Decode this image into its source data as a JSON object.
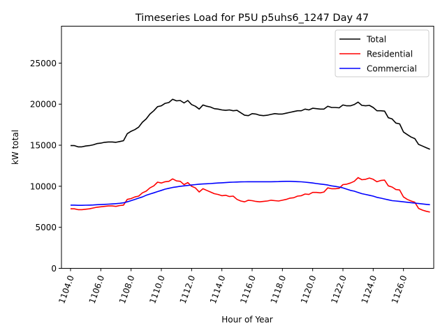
{
  "chart_data": {
    "type": "line",
    "title": "Timeseries Load for P5U p5uhs6_1247  Day 47",
    "xlabel": "Hour of Year",
    "ylabel": "kW total",
    "xlim": [
      1103.4,
      1128.0
    ],
    "ylim": [
      0,
      29500
    ],
    "xticks": [
      1104,
      1106,
      1108,
      1110,
      1112,
      1114,
      1116,
      1118,
      1120,
      1122,
      1124,
      1126
    ],
    "xtick_labels": [
      "1104.0",
      "1106.0",
      "1108.0",
      "1110.0",
      "1112.0",
      "1114.0",
      "1116.0",
      "1118.0",
      "1120.0",
      "1122.0",
      "1124.0",
      "1126.0"
    ],
    "yticks": [
      0,
      5000,
      10000,
      15000,
      20000,
      25000
    ],
    "ytick_labels": [
      "0",
      "5000",
      "10000",
      "15000",
      "20000",
      "25000"
    ],
    "grid": false,
    "legend_position": "top-right",
    "x_start": 1104,
    "x_step": 0.25,
    "series": [
      {
        "name": "Total",
        "color": "#000000",
        "values": [
          14950,
          14950,
          14800,
          14800,
          14900,
          14950,
          15050,
          15200,
          15250,
          15350,
          15400,
          15400,
          15350,
          15450,
          15550,
          16400,
          16700,
          16900,
          17200,
          17800,
          18200,
          18800,
          19200,
          19700,
          19800,
          20100,
          20200,
          20600,
          20400,
          20450,
          20150,
          20450,
          19950,
          19750,
          19400,
          19900,
          19750,
          19650,
          19450,
          19400,
          19300,
          19250,
          19300,
          19200,
          19250,
          18950,
          18650,
          18600,
          18850,
          18800,
          18650,
          18600,
          18650,
          18750,
          18850,
          18800,
          18800,
          18900,
          19000,
          19100,
          19200,
          19200,
          19400,
          19300,
          19500,
          19450,
          19400,
          19400,
          19750,
          19600,
          19600,
          19550,
          19900,
          19800,
          19800,
          19950,
          20250,
          19850,
          19800,
          19850,
          19600,
          19200,
          19200,
          19150,
          18350,
          18200,
          17700,
          17600,
          16600,
          16300,
          16000,
          15800,
          15100,
          14900,
          14700,
          14500
        ]
      },
      {
        "name": "Residential",
        "color": "#ff0000",
        "values": [
          7250,
          7250,
          7150,
          7150,
          7200,
          7250,
          7350,
          7450,
          7500,
          7550,
          7600,
          7600,
          7550,
          7650,
          7700,
          8400,
          8500,
          8700,
          8800,
          9200,
          9400,
          9800,
          10050,
          10500,
          10400,
          10550,
          10600,
          10900,
          10650,
          10600,
          10200,
          10450,
          10000,
          9800,
          9300,
          9700,
          9500,
          9300,
          9100,
          9000,
          8850,
          8900,
          8750,
          8800,
          8400,
          8200,
          8100,
          8300,
          8250,
          8150,
          8100,
          8150,
          8200,
          8300,
          8250,
          8200,
          8300,
          8400,
          8550,
          8600,
          8800,
          8850,
          9050,
          9000,
          9250,
          9250,
          9200,
          9300,
          9800,
          9700,
          9700,
          9750,
          10200,
          10250,
          10400,
          10600,
          11050,
          10800,
          10850,
          11000,
          10850,
          10550,
          10700,
          10750,
          10050,
          9900,
          9600,
          9550,
          8700,
          8400,
          8200,
          8050,
          7300,
          7100,
          6950,
          6850
        ]
      },
      {
        "name": "Commercial",
        "color": "#0000ff",
        "values": [
          7700,
          7700,
          7680,
          7680,
          7690,
          7700,
          7720,
          7750,
          7770,
          7800,
          7820,
          7850,
          7880,
          7920,
          7980,
          8100,
          8250,
          8400,
          8550,
          8700,
          8900,
          9050,
          9200,
          9350,
          9500,
          9650,
          9750,
          9850,
          9920,
          10000,
          10050,
          10100,
          10150,
          10200,
          10250,
          10280,
          10300,
          10330,
          10360,
          10400,
          10420,
          10450,
          10480,
          10500,
          10520,
          10530,
          10540,
          10550,
          10550,
          10550,
          10550,
          10550,
          10550,
          10550,
          10560,
          10570,
          10590,
          10600,
          10600,
          10580,
          10560,
          10540,
          10500,
          10450,
          10400,
          10330,
          10270,
          10220,
          10150,
          10050,
          9980,
          9900,
          9800,
          9650,
          9500,
          9400,
          9250,
          9100,
          9000,
          8900,
          8800,
          8650,
          8550,
          8450,
          8350,
          8250,
          8200,
          8150,
          8100,
          8050,
          8000,
          7950,
          7900,
          7850,
          7800,
          7750
        ]
      }
    ]
  }
}
